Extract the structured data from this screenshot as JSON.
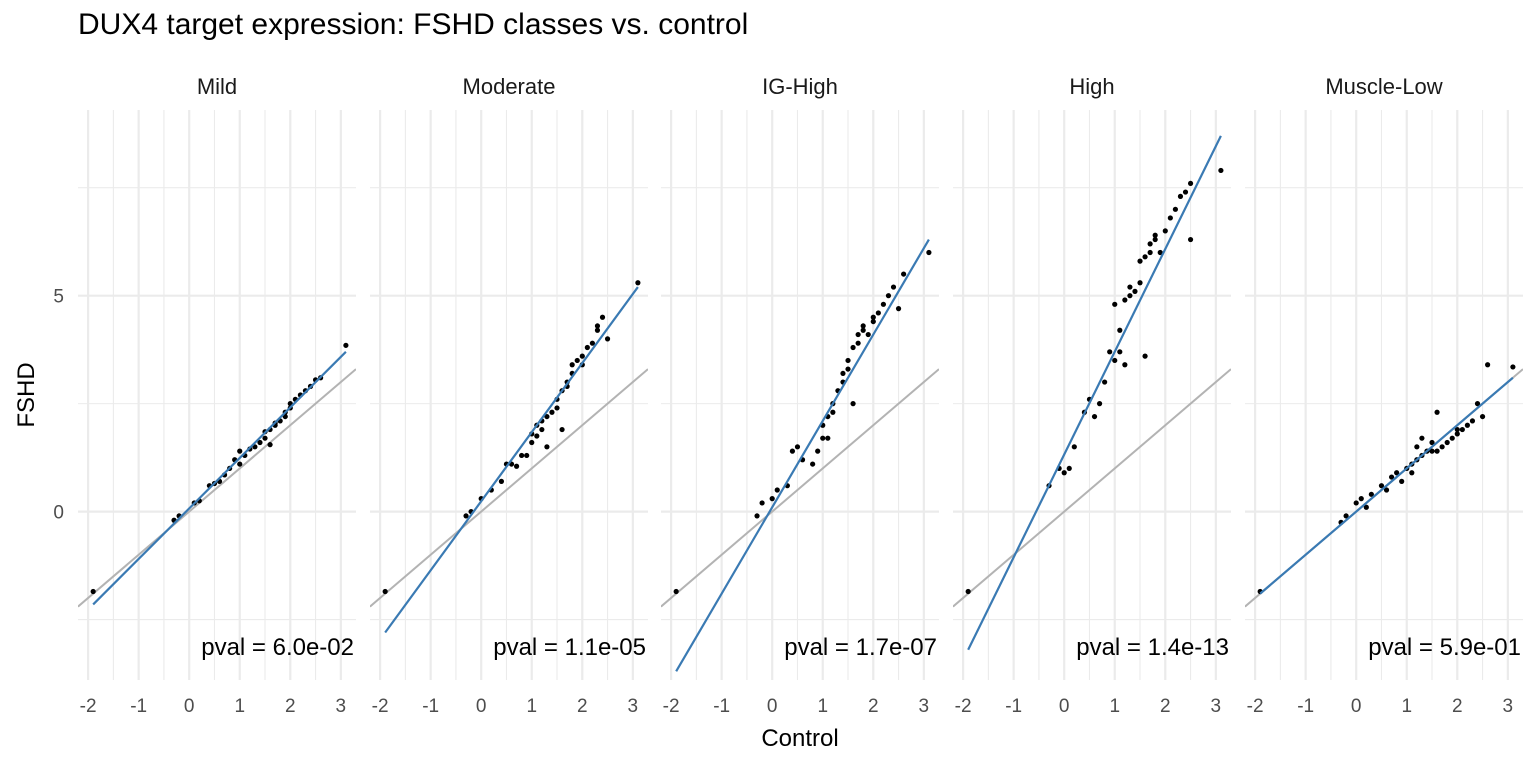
{
  "chart_data": {
    "type": "scatter",
    "title": "DUX4 target expression: FSHD classes vs. control",
    "xlabel": "Control",
    "ylabel": "FSHD",
    "xlim": [
      -2.2,
      3.3
    ],
    "ylim": [
      -3.9,
      9.3
    ],
    "x_ticks": [
      "-2",
      "-1",
      "0",
      "1",
      "2",
      "3"
    ],
    "y_ticks": [
      "0",
      "5"
    ],
    "grid": true,
    "reference_line": {
      "slope": 1,
      "intercept": 0,
      "color": "#b3b3b3"
    },
    "fit_color": "#3a7ab3",
    "point_color": "#000000",
    "panels": [
      {
        "name": "Mild",
        "pval": "pval = 6.0e-02",
        "fit": {
          "x": [
            -1.9,
            3.1
          ],
          "y": [
            -2.15,
            3.7
          ]
        },
        "points": [
          [
            -1.9,
            -1.85
          ],
          [
            -0.3,
            -0.2
          ],
          [
            -0.2,
            -0.1
          ],
          [
            0.1,
            0.2
          ],
          [
            0.2,
            0.25
          ],
          [
            0.4,
            0.6
          ],
          [
            0.5,
            0.65
          ],
          [
            0.6,
            0.7
          ],
          [
            0.7,
            0.85
          ],
          [
            0.8,
            1.0
          ],
          [
            0.9,
            1.2
          ],
          [
            1.0,
            1.1
          ],
          [
            1.0,
            1.4
          ],
          [
            1.1,
            1.3
          ],
          [
            1.2,
            1.45
          ],
          [
            1.3,
            1.5
          ],
          [
            1.4,
            1.6
          ],
          [
            1.5,
            1.7
          ],
          [
            1.5,
            1.85
          ],
          [
            1.6,
            1.55
          ],
          [
            1.6,
            1.9
          ],
          [
            1.7,
            2.0
          ],
          [
            1.7,
            2.05
          ],
          [
            1.8,
            2.1
          ],
          [
            1.9,
            2.2
          ],
          [
            1.9,
            2.3
          ],
          [
            2.0,
            2.4
          ],
          [
            2.0,
            2.5
          ],
          [
            2.1,
            2.6
          ],
          [
            2.2,
            2.7
          ],
          [
            2.3,
            2.8
          ],
          [
            2.4,
            2.9
          ],
          [
            2.5,
            3.05
          ],
          [
            2.6,
            3.1
          ],
          [
            3.1,
            3.85
          ]
        ]
      },
      {
        "name": "Moderate",
        "pval": "pval = 1.1e-05",
        "fit": {
          "x": [
            -1.9,
            3.1
          ],
          "y": [
            -2.8,
            5.2
          ]
        },
        "points": [
          [
            -1.9,
            -1.85
          ],
          [
            -0.3,
            -0.1
          ],
          [
            -0.2,
            0.0
          ],
          [
            0.0,
            0.3
          ],
          [
            0.2,
            0.5
          ],
          [
            0.4,
            0.7
          ],
          [
            0.5,
            1.1
          ],
          [
            0.6,
            1.1
          ],
          [
            0.7,
            1.05
          ],
          [
            0.8,
            1.3
          ],
          [
            0.9,
            1.3
          ],
          [
            1.0,
            1.6
          ],
          [
            1.0,
            1.8
          ],
          [
            1.1,
            1.75
          ],
          [
            1.1,
            2.0
          ],
          [
            1.2,
            2.1
          ],
          [
            1.2,
            1.9
          ],
          [
            1.3,
            1.5
          ],
          [
            1.3,
            2.2
          ],
          [
            1.4,
            2.3
          ],
          [
            1.5,
            2.6
          ],
          [
            1.5,
            2.4
          ],
          [
            1.6,
            1.9
          ],
          [
            1.6,
            2.8
          ],
          [
            1.7,
            3.0
          ],
          [
            1.7,
            2.9
          ],
          [
            1.8,
            3.2
          ],
          [
            1.8,
            3.4
          ],
          [
            1.9,
            3.5
          ],
          [
            2.0,
            3.6
          ],
          [
            2.0,
            3.4
          ],
          [
            2.1,
            3.8
          ],
          [
            2.2,
            3.9
          ],
          [
            2.3,
            4.2
          ],
          [
            2.3,
            4.3
          ],
          [
            2.4,
            4.5
          ],
          [
            2.5,
            4.0
          ],
          [
            3.1,
            5.3
          ]
        ]
      },
      {
        "name": "IG-High",
        "pval": "pval = 1.7e-07",
        "fit": {
          "x": [
            -1.9,
            3.1
          ],
          "y": [
            -3.7,
            6.3
          ]
        },
        "points": [
          [
            -1.9,
            -1.85
          ],
          [
            -0.3,
            -0.1
          ],
          [
            -0.2,
            0.2
          ],
          [
            0.0,
            0.3
          ],
          [
            0.1,
            0.5
          ],
          [
            0.3,
            0.6
          ],
          [
            0.4,
            1.4
          ],
          [
            0.5,
            1.5
          ],
          [
            0.6,
            1.2
          ],
          [
            0.8,
            1.1
          ],
          [
            0.9,
            1.4
          ],
          [
            1.0,
            1.7
          ],
          [
            1.0,
            2.0
          ],
          [
            1.1,
            2.2
          ],
          [
            1.1,
            1.7
          ],
          [
            1.2,
            2.3
          ],
          [
            1.2,
            2.5
          ],
          [
            1.3,
            2.8
          ],
          [
            1.4,
            3.0
          ],
          [
            1.4,
            3.2
          ],
          [
            1.5,
            3.3
          ],
          [
            1.5,
            3.5
          ],
          [
            1.6,
            3.8
          ],
          [
            1.6,
            2.5
          ],
          [
            1.7,
            3.9
          ],
          [
            1.7,
            4.1
          ],
          [
            1.8,
            4.2
          ],
          [
            1.8,
            4.3
          ],
          [
            1.9,
            4.1
          ],
          [
            2.0,
            4.4
          ],
          [
            2.0,
            4.5
          ],
          [
            2.1,
            4.6
          ],
          [
            2.2,
            4.8
          ],
          [
            2.3,
            5.0
          ],
          [
            2.4,
            5.2
          ],
          [
            2.5,
            4.7
          ],
          [
            2.6,
            5.5
          ],
          [
            3.1,
            6.0
          ]
        ]
      },
      {
        "name": "High",
        "pval": "pval = 1.4e-13",
        "fit": {
          "x": [
            -1.9,
            3.1
          ],
          "y": [
            -3.2,
            8.7
          ]
        },
        "points": [
          [
            -1.9,
            -1.85
          ],
          [
            -0.3,
            0.6
          ],
          [
            -0.1,
            1.0
          ],
          [
            0.0,
            0.9
          ],
          [
            0.1,
            1.0
          ],
          [
            0.2,
            1.5
          ],
          [
            0.4,
            2.3
          ],
          [
            0.5,
            2.6
          ],
          [
            0.6,
            2.2
          ],
          [
            0.7,
            2.5
          ],
          [
            0.8,
            3.0
          ],
          [
            0.9,
            3.7
          ],
          [
            1.0,
            3.5
          ],
          [
            1.0,
            4.8
          ],
          [
            1.1,
            3.7
          ],
          [
            1.1,
            4.2
          ],
          [
            1.2,
            3.4
          ],
          [
            1.2,
            4.9
          ],
          [
            1.3,
            5.0
          ],
          [
            1.3,
            5.2
          ],
          [
            1.4,
            5.1
          ],
          [
            1.5,
            5.3
          ],
          [
            1.5,
            5.8
          ],
          [
            1.6,
            3.6
          ],
          [
            1.6,
            5.9
          ],
          [
            1.7,
            6.0
          ],
          [
            1.7,
            6.2
          ],
          [
            1.8,
            6.3
          ],
          [
            1.8,
            6.4
          ],
          [
            1.9,
            6.0
          ],
          [
            2.0,
            6.5
          ],
          [
            2.1,
            6.8
          ],
          [
            2.2,
            7.0
          ],
          [
            2.3,
            7.3
          ],
          [
            2.4,
            7.4
          ],
          [
            2.5,
            7.6
          ],
          [
            2.5,
            6.3
          ],
          [
            3.1,
            7.9
          ]
        ]
      },
      {
        "name": "Muscle-Low",
        "pval": "pval = 5.9e-01",
        "fit": {
          "x": [
            -1.9,
            3.1
          ],
          "y": [
            -1.9,
            3.1
          ]
        },
        "points": [
          [
            -1.9,
            -1.85
          ],
          [
            -0.3,
            -0.25
          ],
          [
            -0.2,
            -0.1
          ],
          [
            0.0,
            0.2
          ],
          [
            0.1,
            0.3
          ],
          [
            0.2,
            0.1
          ],
          [
            0.3,
            0.4
          ],
          [
            0.5,
            0.6
          ],
          [
            0.6,
            0.5
          ],
          [
            0.7,
            0.8
          ],
          [
            0.8,
            0.9
          ],
          [
            0.9,
            0.7
          ],
          [
            1.0,
            1.0
          ],
          [
            1.1,
            1.1
          ],
          [
            1.1,
            0.9
          ],
          [
            1.2,
            1.2
          ],
          [
            1.2,
            1.5
          ],
          [
            1.3,
            1.3
          ],
          [
            1.3,
            1.7
          ],
          [
            1.4,
            1.4
          ],
          [
            1.5,
            1.4
          ],
          [
            1.5,
            1.6
          ],
          [
            1.6,
            2.3
          ],
          [
            1.6,
            1.4
          ],
          [
            1.7,
            1.5
          ],
          [
            1.8,
            1.6
          ],
          [
            1.9,
            1.7
          ],
          [
            2.0,
            1.8
          ],
          [
            2.0,
            1.9
          ],
          [
            2.1,
            1.9
          ],
          [
            2.2,
            2.0
          ],
          [
            2.3,
            2.1
          ],
          [
            2.4,
            2.5
          ],
          [
            2.5,
            2.2
          ],
          [
            2.6,
            3.4
          ],
          [
            3.1,
            3.35
          ]
        ]
      }
    ]
  }
}
